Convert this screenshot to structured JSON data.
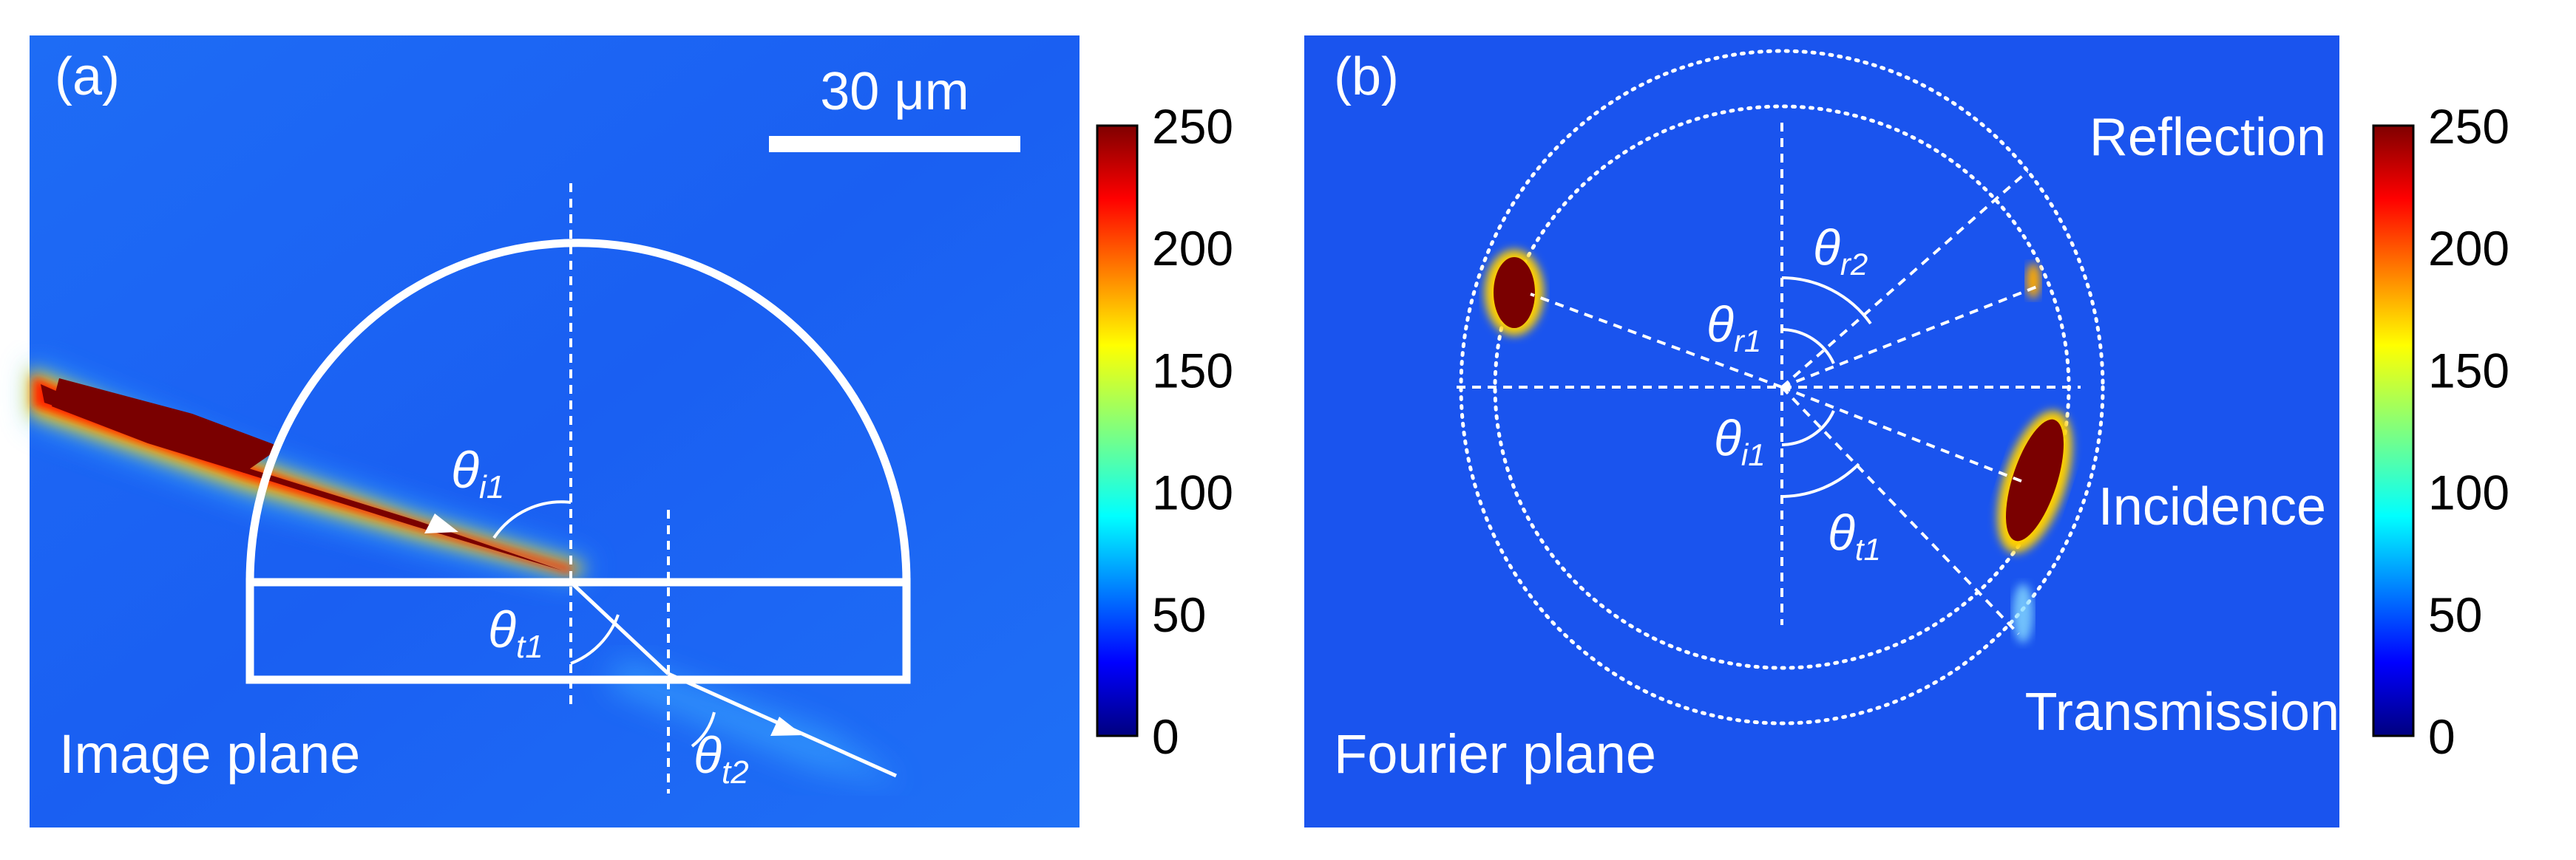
{
  "colors": {
    "background": "#1a5ff2",
    "beam": "#7a0000",
    "overlay": "#ffffff"
  },
  "panel_a": {
    "tag": "(a)",
    "scale_bar": "30 μm",
    "caption": "Image plane",
    "angles": {
      "i1": {
        "base": "θ",
        "sub": "i1"
      },
      "t1": {
        "base": "θ",
        "sub": "t1"
      },
      "t2": {
        "base": "θ",
        "sub": "t2"
      }
    }
  },
  "panel_b": {
    "tag": "(b)",
    "caption": "Fourier plane",
    "beam_labels": {
      "reflection": "Reflection",
      "incidence": "Incidence",
      "transmission": "Transmission"
    },
    "angles": {
      "r2": {
        "base": "θ",
        "sub": "r2"
      },
      "r1": {
        "base": "θ",
        "sub": "r1"
      },
      "i1": {
        "base": "θ",
        "sub": "i1"
      },
      "t1": {
        "base": "θ",
        "sub": "t1"
      }
    }
  },
  "colorbar": {
    "ticks": [
      "250",
      "200",
      "150",
      "100",
      "50",
      "0"
    ],
    "colormap": "jet"
  }
}
